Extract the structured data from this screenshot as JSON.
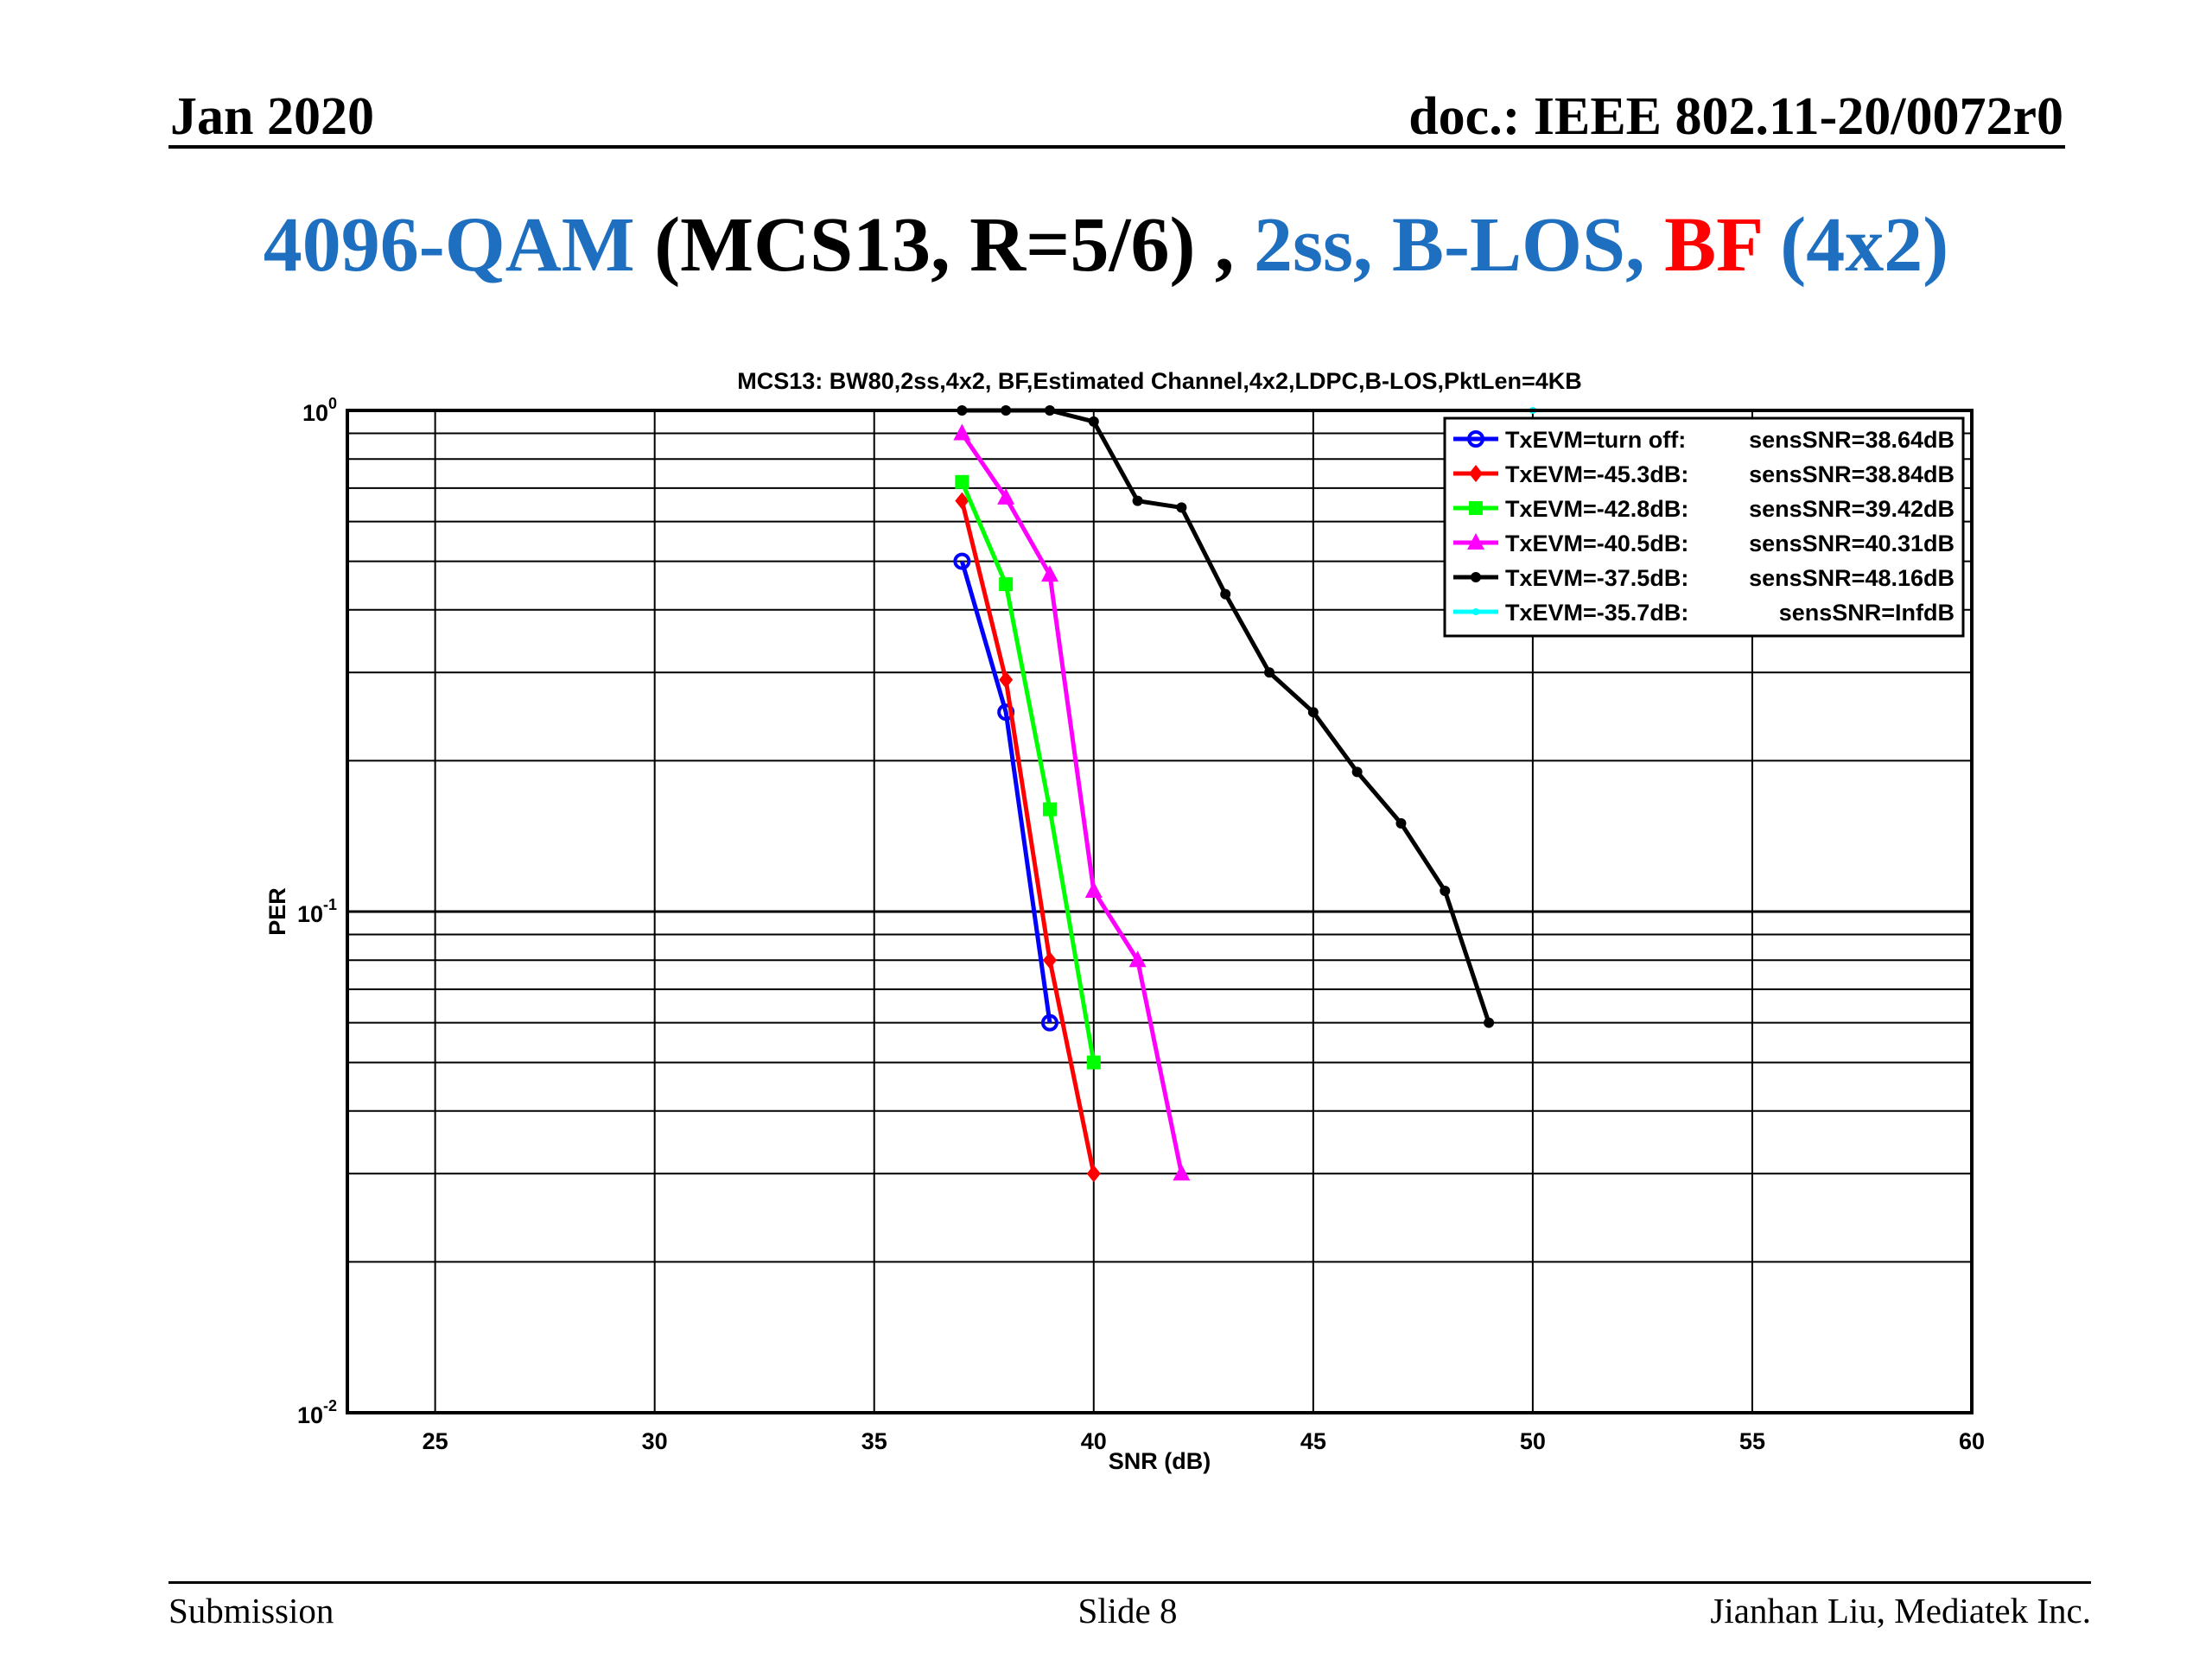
{
  "header": {
    "date": "Jan 2020",
    "doc": "doc.: IEEE 802.11-20/0072r0"
  },
  "title": {
    "parts": [
      {
        "text": "4096-QAM",
        "color": "#1f6fc0"
      },
      {
        "text": " (MCS13, R=5/6) , ",
        "color": "#000000"
      },
      {
        "text": "2ss, B-LOS, ",
        "color": "#1f6fc0"
      },
      {
        "text": "BF",
        "color": "#ff0000"
      },
      {
        "text": " (4x2)",
        "color": "#1f6fc0"
      }
    ]
  },
  "footer": {
    "left": "Submission",
    "center": "Slide 8",
    "right": "Jianhan Liu, Mediatek Inc."
  },
  "chart_data": {
    "type": "line",
    "title": "MCS13: BW80,2ss,4x2, BF,Estimated Channel,4x2,LDPC,B-LOS,PktLen=4KB",
    "xlabel": "SNR (dB)",
    "ylabel": "PER",
    "xlim": [
      23,
      60
    ],
    "ylim": [
      0.01,
      1
    ],
    "yscale": "log",
    "grid": true,
    "legend_position": "top-right",
    "xticks": [
      25,
      30,
      35,
      40,
      45,
      50,
      55,
      60
    ],
    "yticks": [
      {
        "value": 1,
        "base": "10",
        "exp": "0"
      },
      {
        "value": 0.1,
        "base": "10",
        "exp": "-1"
      },
      {
        "value": 0.01,
        "base": "10",
        "exp": "-2"
      }
    ],
    "series": [
      {
        "name": "TxEVM=turn off:",
        "sens": "sensSNR=38.64dB",
        "color": "#0000ff",
        "marker": "circle",
        "x": [
          37,
          38,
          39
        ],
        "y": [
          0.5,
          0.25,
          0.06
        ]
      },
      {
        "name": "TxEVM=-45.3dB:",
        "sens": "sensSNR=38.84dB",
        "color": "#ff0000",
        "marker": "diamond",
        "x": [
          37,
          38,
          39,
          40
        ],
        "y": [
          0.66,
          0.29,
          0.08,
          0.03
        ]
      },
      {
        "name": "TxEVM=-42.8dB:",
        "sens": "sensSNR=39.42dB",
        "color": "#00ff00",
        "marker": "square",
        "x": [
          37,
          38,
          39,
          40
        ],
        "y": [
          0.72,
          0.45,
          0.16,
          0.05
        ]
      },
      {
        "name": "TxEVM=-40.5dB:",
        "sens": "sensSNR=40.31dB",
        "color": "#ff00ff",
        "marker": "triangle",
        "x": [
          37,
          38,
          39,
          40,
          41,
          42
        ],
        "y": [
          0.9,
          0.67,
          0.47,
          0.11,
          0.08,
          0.03
        ]
      },
      {
        "name": "TxEVM=-37.5dB:",
        "sens": "sensSNR=48.16dB",
        "color": "#000000",
        "marker": "dot",
        "x": [
          37,
          38,
          39,
          40,
          41,
          42,
          43,
          44,
          45,
          46,
          47,
          48,
          49
        ],
        "y": [
          1,
          1,
          1,
          0.95,
          0.66,
          0.64,
          0.43,
          0.3,
          0.25,
          0.19,
          0.15,
          0.11,
          0.06
        ]
      },
      {
        "name": "TxEVM=-35.7dB:",
        "sens": "sensSNR=InfdB",
        "color": "#00ffff",
        "marker": "star",
        "x": [
          50
        ],
        "y": [
          1
        ]
      }
    ]
  }
}
